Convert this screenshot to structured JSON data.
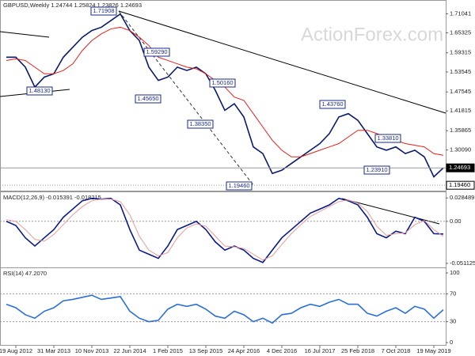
{
  "chart_data": {
    "type": "ohlc-indicators",
    "title": "GBPUSD,Weekly  1.24744 1.25824 1.23826 1.24693",
    "watermark": "ActionForex.com",
    "categories": [
      null,
      "19 Aug 2012",
      null,
      null,
      null,
      "31 Mar 2013",
      null,
      null,
      null,
      "10 Nov 2013",
      null,
      null,
      null,
      "22 Jun 2014",
      null,
      null,
      null,
      "1 Feb 2015",
      null,
      null,
      null,
      "13 Sep 2015",
      null,
      null,
      null,
      "24 Apr 2016",
      null,
      null,
      null,
      "4 Dec 2016",
      null,
      null,
      null,
      "16 Jul 2017",
      null,
      null,
      null,
      "25 Feb 2018",
      null,
      null,
      null,
      "7 Oct 2018",
      null,
      null,
      null,
      "19 May 2019",
      null
    ],
    "price": {
      "ylim": [
        1.176,
        1.752
      ],
      "yticks": [
        1.71041,
        1.65325,
        1.59315,
        1.53545,
        1.47545,
        1.41815,
        1.35865,
        {
          "value": 1.3009,
          "label": "1.30090"
        }
      ],
      "markers": [
        1.24693,
        {
          "value": 1.1946,
          "label": "1.19460"
        }
      ],
      "series": [
        {
          "name": "GBPUSD",
          "color": "#0a1a6e",
          "values": [
            1.58,
            1.58,
            1.55,
            1.49,
            1.52,
            1.53,
            1.58,
            1.61,
            1.64,
            1.66,
            1.67,
            1.69,
            1.71,
            1.66,
            1.63,
            1.55,
            1.51,
            1.52,
            1.55,
            1.54,
            1.55,
            1.53,
            1.48,
            1.42,
            1.44,
            1.4,
            1.31,
            1.29,
            1.23,
            1.24,
            1.26,
            1.28,
            1.3,
            1.32,
            1.35,
            1.4,
            1.41,
            1.39,
            1.35,
            1.31,
            1.3,
            1.31,
            1.29,
            1.3,
            1.28,
            1.22,
            1.24693
          ]
        },
        {
          "name": "MA",
          "color": "#e8201a",
          "values": [
            1.57,
            1.575,
            1.57,
            1.55,
            1.53,
            1.53,
            1.54,
            1.56,
            1.6,
            1.63,
            1.65,
            1.665,
            1.67,
            1.66,
            1.64,
            1.615,
            1.58,
            1.57,
            1.56,
            1.55,
            1.545,
            1.53,
            1.51,
            1.49,
            1.46,
            1.45,
            1.41,
            1.37,
            1.33,
            1.3,
            1.28,
            1.28,
            1.29,
            1.3,
            1.31,
            1.32,
            1.34,
            1.36,
            1.36,
            1.35,
            1.34,
            1.33,
            1.32,
            1.315,
            1.31,
            1.29,
            1.285
          ]
        }
      ],
      "annotations": [
        {
          "value": 1.71908,
          "label": "1.71908"
        },
        {
          "value": 1.5929,
          "label": "1.59290"
        },
        {
          "value": 1.5016,
          "label": "1.50160"
        },
        {
          "value": 1.4565,
          "label": "1.45650"
        },
        {
          "value": 1.3835,
          "label": "1.38350"
        },
        {
          "value": 1.4376,
          "label": "1.43760"
        },
        {
          "value": 1.3381,
          "label": "1.33810"
        },
        {
          "value": 1.2391,
          "label": "1.23910"
        },
        {
          "value": 1.1946,
          "label": "1.19460"
        },
        {
          "value": 1.4813,
          "label": "1.48130"
        }
      ]
    },
    "macd": {
      "title": "MACD(12,26,9) -0.015391 -0.018215",
      "ylim": [
        -0.056,
        0.0354
      ],
      "yticks": [
        0.028489,
        {
          "value": 0,
          "label": "0.00"
        },
        -0.051125
      ],
      "series": [
        {
          "name": "MACD",
          "color": "#0a1a8c",
          "values": [
            0.0,
            -0.005,
            -0.02,
            -0.03,
            -0.02,
            -0.01,
            0.005,
            0.015,
            0.025,
            0.028,
            0.027,
            0.028,
            0.02,
            -0.01,
            -0.035,
            -0.04,
            -0.045,
            -0.03,
            -0.01,
            -0.005,
            0.0,
            -0.01,
            -0.025,
            -0.035,
            -0.03,
            -0.035,
            -0.045,
            -0.05,
            -0.035,
            -0.02,
            -0.01,
            0.0,
            0.01,
            0.015,
            0.02,
            0.028,
            0.025,
            0.02,
            0.005,
            -0.015,
            -0.02,
            -0.012,
            -0.015,
            0.005,
            0.0,
            -0.015,
            -0.015391
          ]
        },
        {
          "name": "Signal",
          "color": "#e89a9a",
          "values": [
            0.002,
            0.0,
            -0.01,
            -0.022,
            -0.024,
            -0.016,
            -0.004,
            0.008,
            0.018,
            0.025,
            0.027,
            0.027,
            0.024,
            0.008,
            -0.018,
            -0.035,
            -0.042,
            -0.038,
            -0.02,
            -0.008,
            -0.003,
            -0.006,
            -0.018,
            -0.03,
            -0.031,
            -0.033,
            -0.04,
            -0.047,
            -0.042,
            -0.028,
            -0.015,
            -0.004,
            0.006,
            0.012,
            0.018,
            0.024,
            0.026,
            0.022,
            0.012,
            -0.006,
            -0.017,
            -0.015,
            -0.014,
            -0.004,
            0.001,
            -0.01,
            -0.018215
          ]
        }
      ]
    },
    "rsi": {
      "title": "RSI(14) 47.2070",
      "ylim": [
        -4.5,
        106.8
      ],
      "yticks": [
        100,
        70,
        30,
        0
      ],
      "series": [
        {
          "name": "RSI",
          "color": "#2a6fdb",
          "values": [
            55,
            50,
            40,
            35,
            45,
            50,
            60,
            62,
            65,
            68,
            62,
            64,
            66,
            45,
            35,
            30,
            32,
            48,
            55,
            52,
            55,
            48,
            38,
            35,
            45,
            40,
            30,
            35,
            28,
            40,
            42,
            50,
            55,
            52,
            58,
            62,
            55,
            55,
            42,
            38,
            45,
            50,
            42,
            52,
            48,
            35,
            47.207
          ]
        }
      ]
    }
  }
}
